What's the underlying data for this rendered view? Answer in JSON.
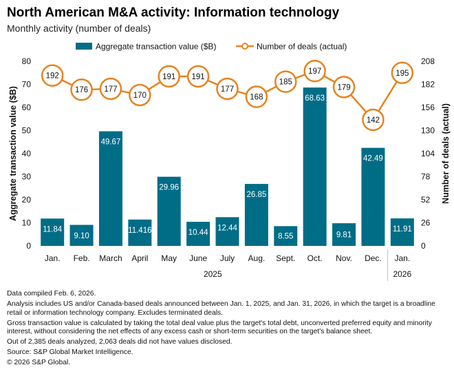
{
  "title": "North American M&A activity: Information technology",
  "subtitle": "Monthly activity (number of deals)",
  "chart_data": {
    "type": "bar+line",
    "categories": [
      "Jan.",
      "Feb.",
      "March",
      "April",
      "May",
      "June",
      "July",
      "Aug.",
      "Sept.",
      "Oct.",
      "Nov.",
      "Dec.",
      "Jan."
    ],
    "year_groups": [
      {
        "label": "2025",
        "count": 12
      },
      {
        "label": "2026",
        "count": 1
      }
    ],
    "series": [
      {
        "name": "Aggregate transaction value ($B)",
        "type": "bar",
        "axis": "left",
        "color": "#006d87",
        "values": [
          11.84,
          9.1,
          49.67,
          11.416,
          29.96,
          10.44,
          12.44,
          26.85,
          8.55,
          68.63,
          9.81,
          42.49,
          11.91
        ],
        "labels": [
          "11.84",
          "9.10",
          "49.67",
          "11.416",
          "29.96",
          "10.44",
          "12.44",
          "26.85",
          "8.55",
          "68.63",
          "9.81",
          "42.49",
          "11.91"
        ]
      },
      {
        "name": "Number of deals (actual)",
        "type": "line",
        "axis": "right",
        "color": "#e8831f",
        "values": [
          192,
          176,
          177,
          170,
          191,
          191,
          177,
          168,
          185,
          197,
          179,
          142,
          195
        ],
        "labels": [
          "192",
          "176",
          "177",
          "170",
          "191",
          "191",
          "177",
          "168",
          "185",
          "197",
          "179",
          "142",
          "195"
        ]
      }
    ],
    "y_left": {
      "label": "Aggregate transaction value ($B)",
      "min": 0,
      "max": 80,
      "ticks": [
        "0",
        "10",
        "20",
        "30",
        "40",
        "50",
        "60",
        "70",
        "80"
      ]
    },
    "y_right": {
      "label": "Number of deals (actual)",
      "min": 0,
      "max": 208,
      "ticks": [
        "0",
        "26",
        "52",
        "78",
        "104",
        "130",
        "156",
        "182",
        "208"
      ]
    },
    "legend_position": "top",
    "grid": false
  },
  "notes": [
    "Data compiled Feb. 6, 2026.",
    "Analysis includes US and/or Canada-based deals announced between Jan. 1, 2025, and Jan. 31, 2026, in which the target is a broadline retail or information technology company. Excludes terminated deals.",
    "Gross transaction value is calculated by taking the total deal value plus the target's total debt, unconverted preferred equity and minority interest, without considering the net effects of any excess cash or short-term securities on the target's balance sheet.",
    "Out of 2,385 deals analyzed, 2,063 deals did not have values disclosed.",
    "Source: S&P Global Market Intelligence.",
    "© 2026 S&P Global."
  ],
  "colors": {
    "bar": "#006d87",
    "line": "#e8831f",
    "bar_label": "#ffffff",
    "marker_fill": "#ffffff"
  }
}
